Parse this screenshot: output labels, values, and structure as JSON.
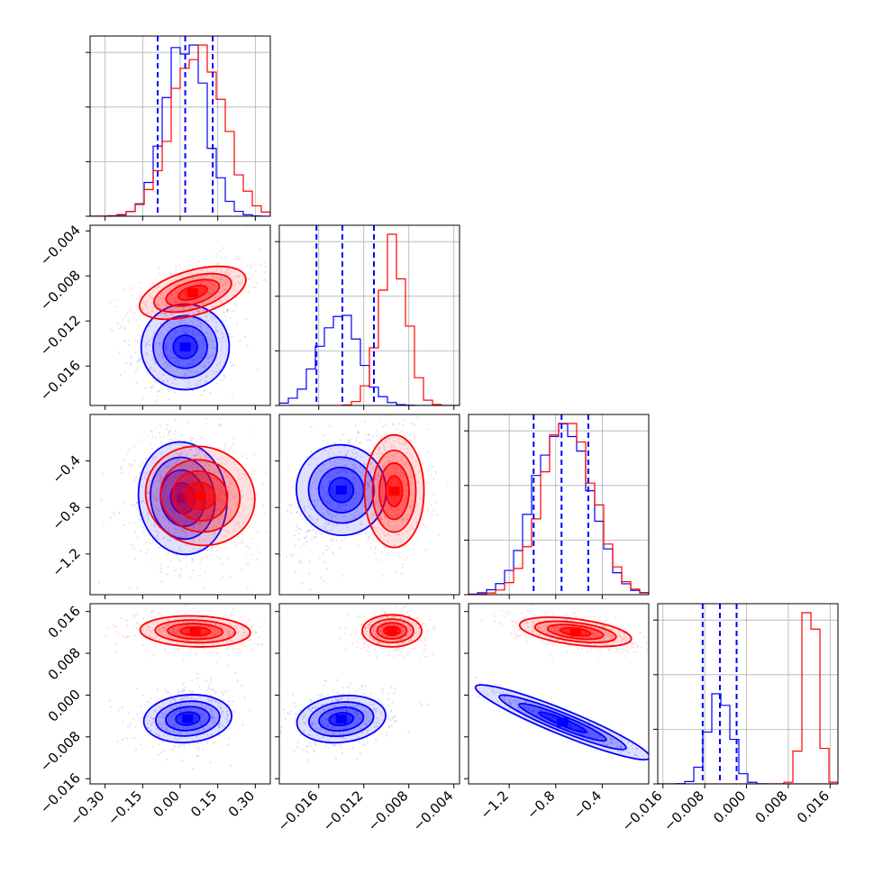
{
  "chart_data": {
    "type": "corner",
    "params": 4,
    "series": [
      {
        "name": "",
        "color": "#0000ff"
      },
      {
        "name": "",
        "color": "#ff0000"
      }
    ],
    "axes": [
      {
        "range": [
          -0.36,
          0.36
        ],
        "ticks": [
          "-0.30",
          "-0.15",
          "0.00",
          "0.15",
          "0.30"
        ],
        "tick_values": [
          -0.3,
          -0.15,
          0.0,
          0.15,
          0.3
        ],
        "quantiles": [
          -0.09,
          0.02,
          0.13
        ],
        "blue": {
          "mean": 0.02,
          "sd": 0.08
        },
        "red": {
          "mean": 0.07,
          "sd": 0.1
        }
      },
      {
        "range": [
          -0.0195,
          -0.0035
        ],
        "ticks": [
          "-0.004",
          "-0.008",
          "-0.012",
          "-0.016"
        ],
        "tick_values": [
          -0.004,
          -0.008,
          -0.012,
          -0.016
        ],
        "bottom_ticks": [
          "-0.016",
          "-0.012",
          "-0.008",
          "-0.004"
        ],
        "quantiles": [
          -0.0162,
          -0.0139,
          -0.0111
        ],
        "blue": {
          "mean": -0.0142,
          "sd": 0.0018
        },
        "red": {
          "mean": -0.0094,
          "sd": 0.0012
        }
      },
      {
        "range": [
          -1.55,
          0.0
        ],
        "ticks": [
          "-0.4",
          "-0.8",
          "-1.2"
        ],
        "tick_values": [
          -0.4,
          -0.8,
          -1.2
        ],
        "bottom_ticks": [
          "-1.2",
          "-0.8",
          "-0.4"
        ],
        "quantiles": [
          -0.99,
          -0.75,
          -0.52
        ],
        "blue": {
          "mean": -0.74,
          "sd": 0.23
        },
        "red": {
          "mean": -0.69,
          "sd": 0.22
        }
      },
      {
        "range": [
          -0.017,
          0.0175
        ],
        "ticks": [
          "0.016",
          "0.008",
          "0.000",
          "-0.008",
          "-0.016"
        ],
        "tick_values": [
          0.016,
          0.008,
          0.0,
          -0.008,
          -0.016
        ],
        "bottom_ticks": [
          "-0.016",
          "-0.008",
          "0.000",
          "0.008",
          "0.016"
        ],
        "quantiles": [
          -0.0084,
          -0.0051,
          -0.0019
        ],
        "blue": {
          "mean": -0.0051,
          "sd": 0.0022
        },
        "red": {
          "mean": 0.0123,
          "sd": 0.0014
        }
      }
    ],
    "pairs": {
      "p1_0": {
        "blue_center": [
          0.02,
          -0.0143
        ],
        "red_center": [
          0.05,
          -0.0095
        ],
        "blue_rho": 0.1,
        "red_rho": 0.55
      },
      "p2_0": {
        "blue_center": [
          0.01,
          -0.72
        ],
        "red_center": [
          0.08,
          -0.7
        ],
        "blue_rho": 0.1,
        "red_rho": -0.3
      },
      "p2_1": {
        "blue_center": [
          -0.014,
          -0.65
        ],
        "red_center": [
          -0.0093,
          -0.66
        ],
        "blue_rho": 0.5,
        "red_rho": 0.0
      },
      "p3_0": {
        "blue_center": [
          0.03,
          -0.0045
        ],
        "red_center": [
          0.06,
          0.0122
        ],
        "blue_rho": 0.15,
        "red_rho": -0.1
      },
      "p3_1": {
        "blue_center": [
          -0.014,
          -0.0046
        ],
        "red_center": [
          -0.0095,
          0.0123
        ],
        "blue_rho": 0.2,
        "red_rho": 0.0
      },
      "p3_2": {
        "blue_center": [
          -0.74,
          -0.0052
        ],
        "red_center": [
          -0.63,
          0.0121
        ],
        "blue_rho": -0.95,
        "red_rho": -0.45
      }
    },
    "grid": true,
    "quantile_style": "dashed blue"
  }
}
